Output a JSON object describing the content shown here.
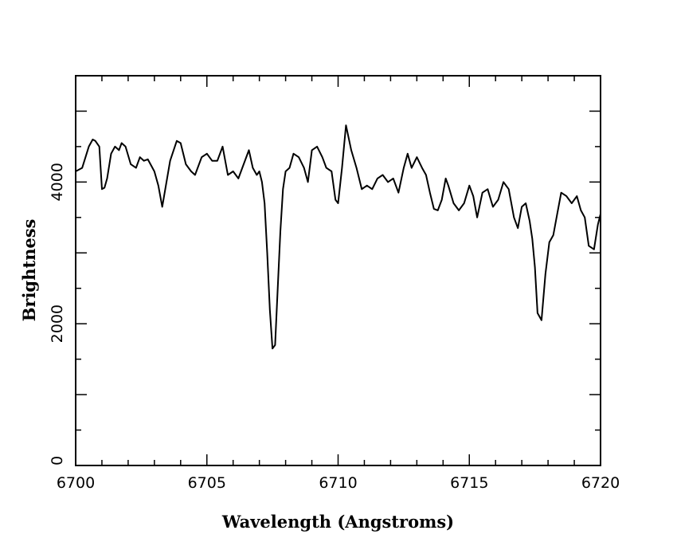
{
  "chart_data": {
    "type": "line",
    "title": "",
    "xlabel": "Wavelength (Angstroms)",
    "ylabel": "Brightness",
    "xlim": [
      6700,
      6720
    ],
    "ylim": [
      0,
      5500
    ],
    "x_ticks": [
      6700,
      6705,
      6710,
      6715,
      6720
    ],
    "x_tick_labels": [
      "6700",
      "6705",
      "6710",
      "6715",
      "6720"
    ],
    "y_ticks": [
      0,
      2000,
      4000
    ],
    "y_tick_labels": [
      "0",
      "2000",
      "4000"
    ],
    "grid": false,
    "line_color": "#000000",
    "series": [
      {
        "x": [
          6700.0,
          6700.25,
          6700.5,
          6700.65,
          6700.75,
          6700.9,
          6701.0,
          6701.1,
          6701.2,
          6701.35,
          6701.5,
          6701.65,
          6701.75,
          6701.9,
          6702.1,
          6702.3,
          6702.45,
          6702.6,
          6702.75,
          6703.0,
          6703.15,
          6703.3,
          6703.6,
          6703.85,
          6704.0,
          6704.2,
          6704.4,
          6704.55,
          6704.8,
          6705.0,
          6705.2,
          6705.4,
          6705.6,
          6705.8,
          6706.0,
          6706.2,
          6706.4,
          6706.6,
          6706.75,
          6706.9,
          6707.0,
          6707.1,
          6707.2,
          6707.3,
          6707.4,
          6707.5,
          6707.6,
          6707.7,
          6707.8,
          6707.9,
          6708.0,
          6708.15,
          6708.3,
          6708.5,
          6708.7,
          6708.85,
          6709.0,
          6709.2,
          6709.4,
          6709.55,
          6709.75,
          6709.9,
          6710.0,
          6710.15,
          6710.3,
          6710.5,
          6710.7,
          6710.9,
          6711.1,
          6711.3,
          6711.5,
          6711.7,
          6711.9,
          6712.1,
          6712.3,
          6712.5,
          6712.65,
          6712.8,
          6713.0,
          6713.2,
          6713.35,
          6713.5,
          6713.65,
          6713.8,
          6713.95,
          6714.1,
          6714.2,
          6714.4,
          6714.6,
          6714.8,
          6715.0,
          6715.15,
          6715.3,
          6715.5,
          6715.7,
          6715.9,
          6716.1,
          6716.3,
          6716.5,
          6716.7,
          6716.85,
          6717.0,
          6717.15,
          6717.3,
          6717.4,
          6717.5,
          6717.6,
          6717.75,
          6717.9,
          6718.05,
          6718.2,
          6718.35,
          6718.5,
          6718.7,
          6718.9,
          6719.1,
          6719.25,
          6719.4,
          6719.55,
          6719.75,
          6719.9,
          6720.0
        ],
        "y": [
          4150,
          4200,
          4500,
          4600,
          4580,
          4500,
          3900,
          3920,
          4050,
          4400,
          4500,
          4450,
          4550,
          4500,
          4250,
          4200,
          4350,
          4300,
          4320,
          4150,
          3950,
          3650,
          4300,
          4580,
          4550,
          4250,
          4150,
          4100,
          4350,
          4400,
          4300,
          4300,
          4500,
          4100,
          4150,
          4050,
          4250,
          4450,
          4200,
          4100,
          4150,
          4000,
          3700,
          3000,
          2200,
          1650,
          1700,
          2500,
          3300,
          3900,
          4150,
          4200,
          4400,
          4350,
          4200,
          4000,
          4450,
          4500,
          4350,
          4200,
          4150,
          3750,
          3700,
          4200,
          4800,
          4450,
          4200,
          3900,
          3950,
          3900,
          4050,
          4100,
          4000,
          4050,
          3850,
          4200,
          4400,
          4200,
          4350,
          4200,
          4100,
          3850,
          3620,
          3600,
          3750,
          4050,
          3950,
          3700,
          3600,
          3700,
          3950,
          3800,
          3500,
          3850,
          3900,
          3650,
          3750,
          4000,
          3900,
          3500,
          3350,
          3650,
          3700,
          3450,
          3200,
          2800,
          2150,
          2050,
          2700,
          3150,
          3250,
          3550,
          3850,
          3800,
          3700,
          3800,
          3600,
          3500,
          3100,
          3050,
          3400,
          3550
        ]
      }
    ]
  }
}
